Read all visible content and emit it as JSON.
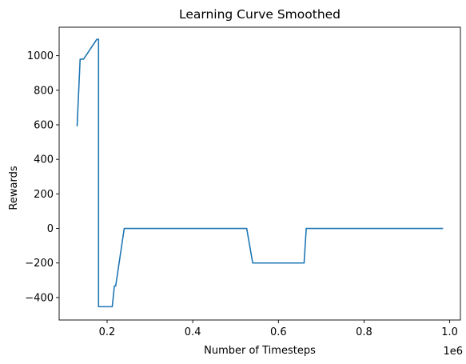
{
  "chart_data": {
    "type": "line",
    "title": "Learning Curve Smoothed",
    "xlabel": "Number of Timesteps",
    "ylabel": "Rewards",
    "x_offset_label": "1e6",
    "xlim": [
      0.088,
      1.025
    ],
    "ylim": [
      -530,
      1165
    ],
    "xticks": [
      0.2,
      0.4,
      0.6,
      0.8,
      1.0
    ],
    "xtick_labels": [
      "0.2",
      "0.4",
      "0.6",
      "0.8",
      "1.0"
    ],
    "yticks": [
      -400,
      -200,
      0,
      200,
      400,
      600,
      800,
      1000
    ],
    "ytick_labels": [
      "−400",
      "−200",
      "0",
      "200",
      "400",
      "600",
      "800",
      "1000"
    ],
    "grid": false,
    "series": [
      {
        "color": "#1f77b4",
        "x": [
          0.13,
          0.137,
          0.145,
          0.176,
          0.18,
          0.18,
          0.212,
          0.217,
          0.22,
          0.24,
          0.526,
          0.54,
          0.66,
          0.665,
          0.983
        ],
        "y": [
          595,
          980,
          980,
          1095,
          1095,
          -453,
          -453,
          -333,
          -333,
          0,
          0,
          -200,
          -200,
          0,
          0
        ]
      }
    ]
  }
}
